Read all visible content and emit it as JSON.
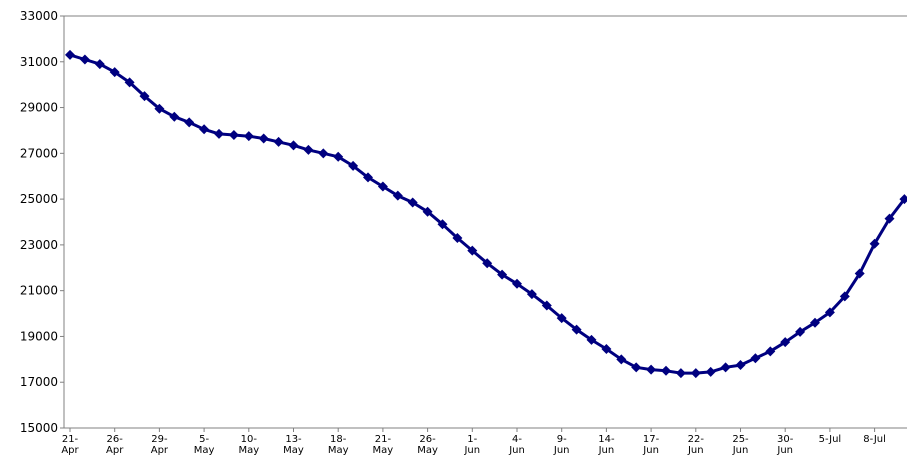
{
  "chart_data": {
    "type": "line",
    "title": "",
    "xlabel": "",
    "ylabel": "",
    "ylim": [
      15000,
      33000
    ],
    "y_ticks": [
      15000,
      17000,
      19000,
      21000,
      23000,
      25000,
      27000,
      29000,
      31000,
      33000
    ],
    "x_tick_labels": [
      [
        "21-",
        "Apr"
      ],
      [
        "26-",
        "Apr"
      ],
      [
        "29-",
        "Apr"
      ],
      [
        "5-",
        "May"
      ],
      [
        "10-",
        "May"
      ],
      [
        "13-",
        "May"
      ],
      [
        "18-",
        "May"
      ],
      [
        "21-",
        "May"
      ],
      [
        "26-",
        "May"
      ],
      [
        "1-",
        "Jun"
      ],
      [
        "4-",
        "Jun"
      ],
      [
        "9-",
        "Jun"
      ],
      [
        "14-",
        "Jun"
      ],
      [
        "17-",
        "Jun"
      ],
      [
        "22-",
        "Jun"
      ],
      [
        "25-",
        "Jun"
      ],
      [
        "30-",
        "Jun"
      ],
      [
        "5-Jul"
      ],
      [
        "8-Jul"
      ]
    ],
    "grid": false,
    "legend": "none",
    "colors": {
      "series": "#000080",
      "axis": "#808080"
    },
    "series": [
      {
        "values": [
          31300,
          31100,
          30900,
          30550,
          30100,
          29500,
          28950,
          28600,
          28350,
          28050,
          27850,
          27800,
          27750,
          27650,
          27500,
          27350,
          27150,
          27000,
          26850,
          26450,
          25950,
          25550,
          25150,
          24850,
          24450,
          23900,
          23300,
          22750,
          22200,
          21700,
          21300,
          20850,
          20350,
          19800,
          19300,
          18850,
          18450,
          18000,
          17650,
          17550,
          17500,
          17400,
          17400,
          17450,
          17650,
          17750,
          18050,
          18350,
          18750,
          19200,
          19600,
          20050,
          20750,
          21750,
          23050,
          24150,
          25000
        ]
      }
    ]
  }
}
